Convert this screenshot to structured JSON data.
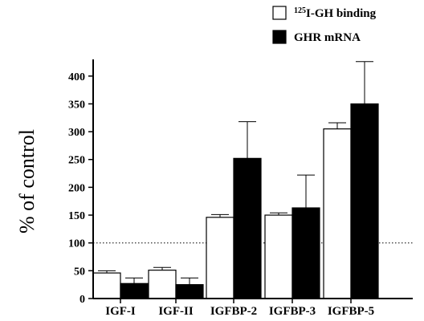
{
  "chart_data": {
    "type": "bar",
    "title": "",
    "xlabel": "",
    "ylabel": "% of control",
    "ylim": [
      0,
      430
    ],
    "yticks": [
      0,
      50,
      100,
      150,
      200,
      250,
      300,
      350,
      400
    ],
    "categories": [
      "IGF-I",
      "IGF-II",
      "IGFBP-2",
      "IGFBP-3",
      "IGFBP-5"
    ],
    "reference_line": 100,
    "legend_position": "top-right",
    "grid": false,
    "series": [
      {
        "name_sup": "125",
        "name": "I-GH binding",
        "fill": "#ffffff",
        "values": [
          46,
          51,
          146,
          150,
          305
        ],
        "errors": [
          4,
          5,
          5,
          4,
          11
        ]
      },
      {
        "name": "GHR mRNA",
        "fill": "#000000",
        "values": [
          27,
          25,
          252,
          163,
          350
        ],
        "errors": [
          10,
          12,
          66,
          59,
          76
        ]
      }
    ]
  }
}
